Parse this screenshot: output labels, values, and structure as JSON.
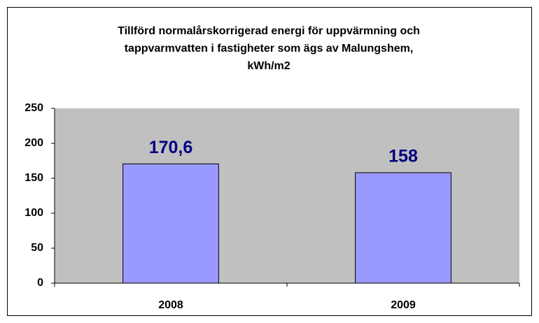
{
  "chart_data": {
    "type": "bar",
    "title": "Tillförd normalårskorrigerad energi för uppvärmning och\ntappvarmvatten i fastigheter som ägs av Malungshem,\nkWh/m2",
    "categories": [
      "2008",
      "2009"
    ],
    "values": [
      170.6,
      158
    ],
    "value_labels": [
      "170,6",
      "158"
    ],
    "color": "#9999ff",
    "ylim": [
      0,
      250
    ],
    "yticks": [
      0,
      50,
      100,
      150,
      200,
      250
    ],
    "grid": false
  }
}
